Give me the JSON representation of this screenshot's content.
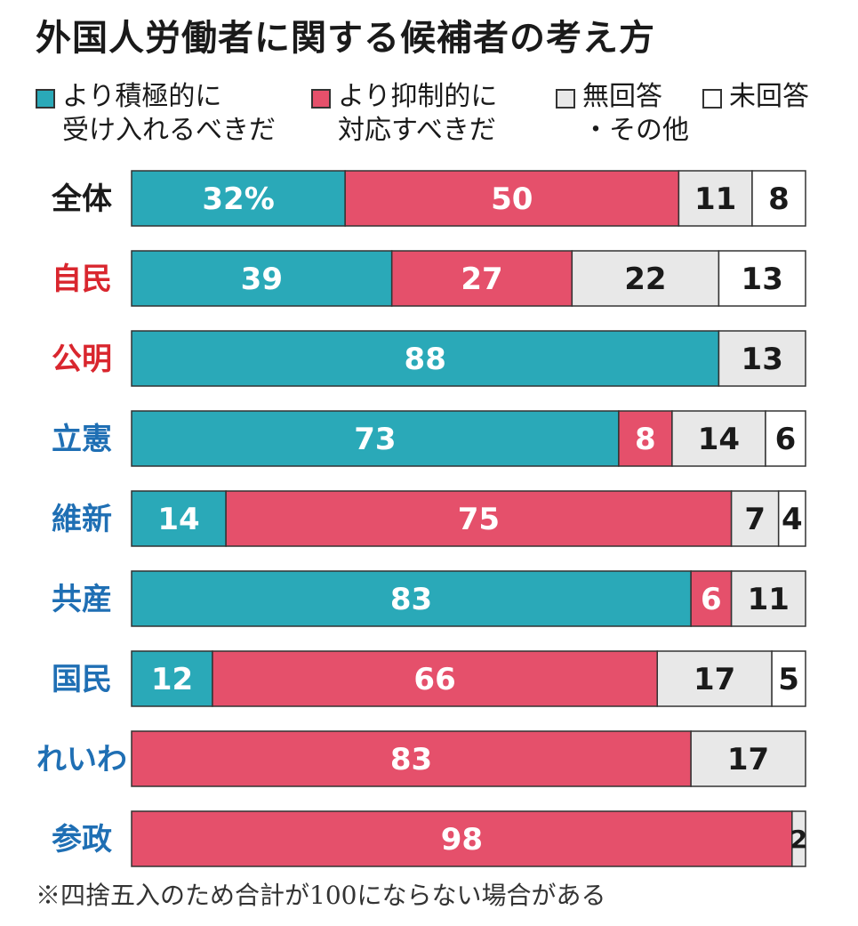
{
  "chart_data": {
    "type": "bar",
    "orientation": "horizontal-stacked-100",
    "title": "外国人労働者に関する候補者の考え方",
    "legend": [
      {
        "name": "より積極的に受け入れるべきだ",
        "line1": "より積極的に",
        "line2": "受け入れるべきだ",
        "color": "#2aa9b8"
      },
      {
        "name": "より抑制的に対応すべきだ",
        "line1": "より抑制的に",
        "line2": "対応すべきだ",
        "color": "#e5506b"
      },
      {
        "name": "無回答・その他",
        "line1": "無回答",
        "line2": "・その他",
        "color": "#e8e8e8"
      },
      {
        "name": "未回答",
        "line1": "未回答",
        "line2": "",
        "color": "#ffffff"
      }
    ],
    "categories": [
      "全体",
      "自民",
      "公明",
      "立憲",
      "維新",
      "共産",
      "国民",
      "れいわ",
      "参政"
    ],
    "category_colors": [
      "#1a1a1a",
      "#d9262e",
      "#d9262e",
      "#1f6fb4",
      "#1f6fb4",
      "#1f6fb4",
      "#1f6fb4",
      "#1f6fb4",
      "#1f6fb4"
    ],
    "series": [
      {
        "name": "より積極的に受け入れるべきだ",
        "values": [
          32,
          39,
          88,
          73,
          14,
          83,
          12,
          0,
          0
        ],
        "labels": [
          "32%",
          "39",
          "88",
          "73",
          "14",
          "83",
          "12",
          "",
          ""
        ]
      },
      {
        "name": "より抑制的に対応すべきだ",
        "values": [
          50,
          27,
          0,
          8,
          75,
          6,
          66,
          83,
          98
        ],
        "labels": [
          "50",
          "27",
          "",
          "8",
          "75",
          "6",
          "66",
          "83",
          "98"
        ]
      },
      {
        "name": "無回答・その他",
        "values": [
          11,
          22,
          13,
          14,
          7,
          11,
          17,
          17,
          2
        ],
        "labels": [
          "11",
          "22",
          "13",
          "14",
          "7",
          "11",
          "17",
          "17",
          "2"
        ]
      },
      {
        "name": "未回答",
        "values": [
          8,
          13,
          0,
          6,
          4,
          0,
          5,
          0,
          0
        ],
        "labels": [
          "8",
          "13",
          "",
          "6",
          "4",
          "",
          "5",
          "",
          ""
        ]
      }
    ],
    "footnote": "※四捨五入のため合計が100にならない場合がある"
  }
}
